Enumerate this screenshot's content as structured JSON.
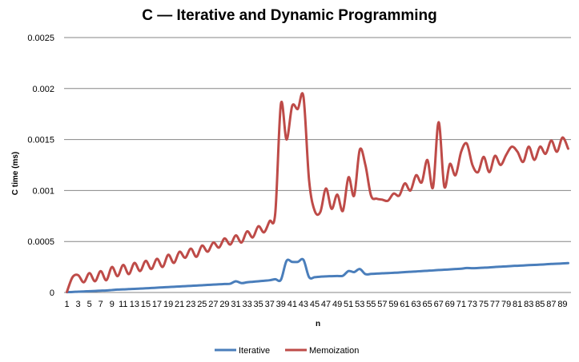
{
  "chart_data": {
    "type": "line",
    "title": "C — Iterative and Dynamic Programming",
    "xlabel": "n",
    "ylabel": "C time (ms)",
    "ylim": [
      0,
      0.0025
    ],
    "yticks": [
      "0",
      "0.0005",
      "0.001",
      "0.0015",
      "0.002",
      "0.0025"
    ],
    "xtick_labels": [
      "1",
      "3",
      "5",
      "7",
      "9",
      "11",
      "13",
      "15",
      "17",
      "19",
      "21",
      "23",
      "25",
      "27",
      "29",
      "31",
      "33",
      "35",
      "37",
      "39",
      "41",
      "43",
      "45",
      "47",
      "49",
      "51",
      "53",
      "55",
      "57",
      "59",
      "61",
      "63",
      "65",
      "67",
      "69",
      "71",
      "73",
      "75",
      "77",
      "79",
      "81",
      "83",
      "85",
      "87",
      "89"
    ],
    "grid": true,
    "legend_position": "bottom",
    "x": [
      1,
      2,
      3,
      4,
      5,
      6,
      7,
      8,
      9,
      10,
      11,
      12,
      13,
      14,
      15,
      16,
      17,
      18,
      19,
      20,
      21,
      22,
      23,
      24,
      25,
      26,
      27,
      28,
      29,
      30,
      31,
      32,
      33,
      34,
      35,
      36,
      37,
      38,
      39,
      40,
      41,
      42,
      43,
      44,
      45,
      46,
      47,
      48,
      49,
      50,
      51,
      52,
      53,
      54,
      55,
      56,
      57,
      58,
      59,
      60,
      61,
      62,
      63,
      64,
      65,
      66,
      67,
      68,
      69,
      70,
      71,
      72,
      73,
      74,
      75,
      76,
      77,
      78,
      79,
      80,
      81,
      82,
      83,
      84,
      85,
      86,
      87,
      88,
      89,
      90
    ],
    "series": [
      {
        "name": "Iterative",
        "color": "#4a7ebb",
        "values": [
          3e-06,
          5e-06,
          8e-06,
          1e-05,
          1.3e-05,
          1.5e-05,
          1.8e-05,
          2e-05,
          2.4e-05,
          2.8e-05,
          3e-05,
          3.3e-05,
          3.5e-05,
          3.8e-05,
          4.1e-05,
          4.4e-05,
          4.7e-05,
          5e-05,
          5.3e-05,
          5.6e-05,
          5.9e-05,
          6.2e-05,
          6.5e-05,
          6.8e-05,
          7.1e-05,
          7.4e-05,
          7.7e-05,
          8e-05,
          8.3e-05,
          8.6e-05,
          0.00011,
          9.2e-05,
          0.0001,
          0.000105,
          0.00011,
          0.000115,
          0.00012,
          0.00013,
          0.000125,
          0.00031,
          0.0003,
          0.0003,
          0.00032,
          0.00015,
          0.00015,
          0.000155,
          0.000158,
          0.00016,
          0.000162,
          0.000164,
          0.00021,
          0.0002,
          0.00023,
          0.00018,
          0.000182,
          0.000185,
          0.000188,
          0.00019,
          0.000193,
          0.000196,
          0.0002,
          0.000203,
          0.000206,
          0.00021,
          0.000213,
          0.000216,
          0.00022,
          0.000223,
          0.000226,
          0.00023,
          0.000233,
          0.00024,
          0.000238,
          0.00024,
          0.000243,
          0.000246,
          0.00025,
          0.000253,
          0.000256,
          0.00026,
          0.000262,
          0.000265,
          0.000268,
          0.00027,
          0.000273,
          0.000276,
          0.00028,
          0.000282,
          0.000285,
          0.000288
        ]
      },
      {
        "name": "Memoization",
        "color": "#be4b48",
        "values": [
          5e-06,
          0.00015,
          0.00017,
          0.0001,
          0.00019,
          0.00011,
          0.00021,
          0.00012,
          0.00025,
          0.00016,
          0.00027,
          0.00018,
          0.00029,
          0.00021,
          0.00031,
          0.00023,
          0.00033,
          0.00025,
          0.00037,
          0.00029,
          0.0004,
          0.00034,
          0.00043,
          0.00035,
          0.00046,
          0.0004,
          0.00049,
          0.00044,
          0.00053,
          0.00047,
          0.00056,
          0.00049,
          0.0006,
          0.00054,
          0.00065,
          0.00059,
          0.0007,
          0.00078,
          0.00185,
          0.0015,
          0.00183,
          0.0018,
          0.00192,
          0.0011,
          0.0008,
          0.00079,
          0.00102,
          0.00082,
          0.00096,
          0.0008,
          0.00113,
          0.00095,
          0.0014,
          0.00125,
          0.00095,
          0.00092,
          0.00091,
          0.0009,
          0.00097,
          0.00095,
          0.00107,
          0.001,
          0.00115,
          0.00108,
          0.0013,
          0.00103,
          0.00167,
          0.00104,
          0.00126,
          0.00115,
          0.00138,
          0.00146,
          0.00125,
          0.00118,
          0.00133,
          0.00118,
          0.00134,
          0.00125,
          0.00135,
          0.00143,
          0.00138,
          0.00128,
          0.00143,
          0.0013,
          0.00143,
          0.00136,
          0.00149,
          0.00138,
          0.00152,
          0.00141
        ]
      }
    ]
  }
}
